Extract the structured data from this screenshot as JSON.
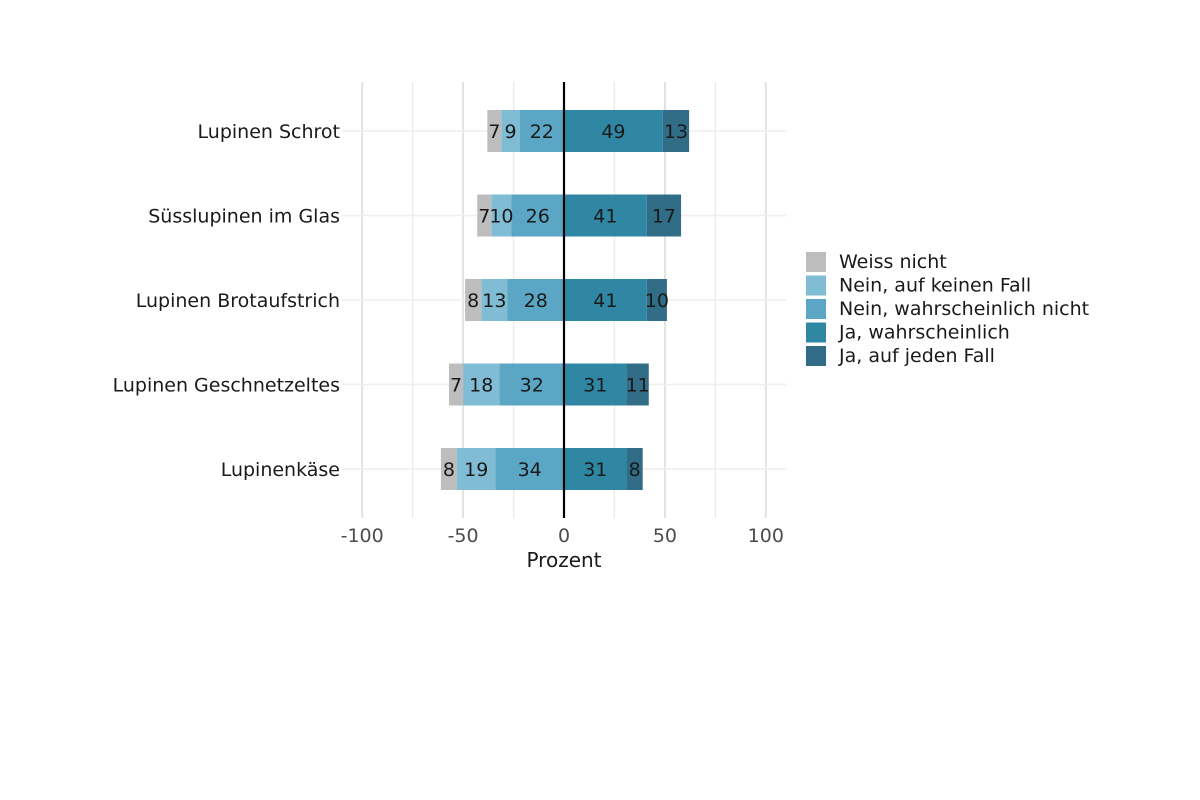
{
  "chart_data": {
    "type": "bar",
    "orientation": "horizontal",
    "stacking": "diverging",
    "title": "",
    "xlabel": "Prozent",
    "ylabel": "",
    "xlim": [
      -110,
      110
    ],
    "xticks": [
      -100,
      -50,
      0,
      50,
      100
    ],
    "xtick_labels": [
      "-100",
      "-50",
      "0",
      "50",
      "100"
    ],
    "grid": true,
    "legend_position": "right",
    "categories": [
      "Lupinen Schrot",
      "Süsslupinen im Glas",
      "Lupinen Brotaufstrich",
      "Lupinen Geschnetzeltes",
      "Lupinenkäse"
    ],
    "series": [
      {
        "name": "Weiss nicht",
        "side": "negative",
        "color": "#bdbdbd",
        "values": [
          7,
          7,
          8,
          7,
          8
        ]
      },
      {
        "name": "Nein, auf keinen Fall",
        "side": "negative",
        "color": "#80bcd4",
        "values": [
          9,
          10,
          13,
          18,
          19
        ]
      },
      {
        "name": "Nein, wahrscheinlich nicht",
        "side": "negative",
        "color": "#5aa6c4",
        "values": [
          22,
          26,
          28,
          32,
          34
        ]
      },
      {
        "name": "Ja, wahrscheinlich",
        "side": "positive",
        "color": "#2f87a4",
        "values": [
          49,
          41,
          41,
          31,
          31
        ]
      },
      {
        "name": "Ja, auf jeden Fall",
        "side": "positive",
        "color": "#316d87",
        "values": [
          13,
          17,
          10,
          11,
          8
        ]
      }
    ]
  }
}
